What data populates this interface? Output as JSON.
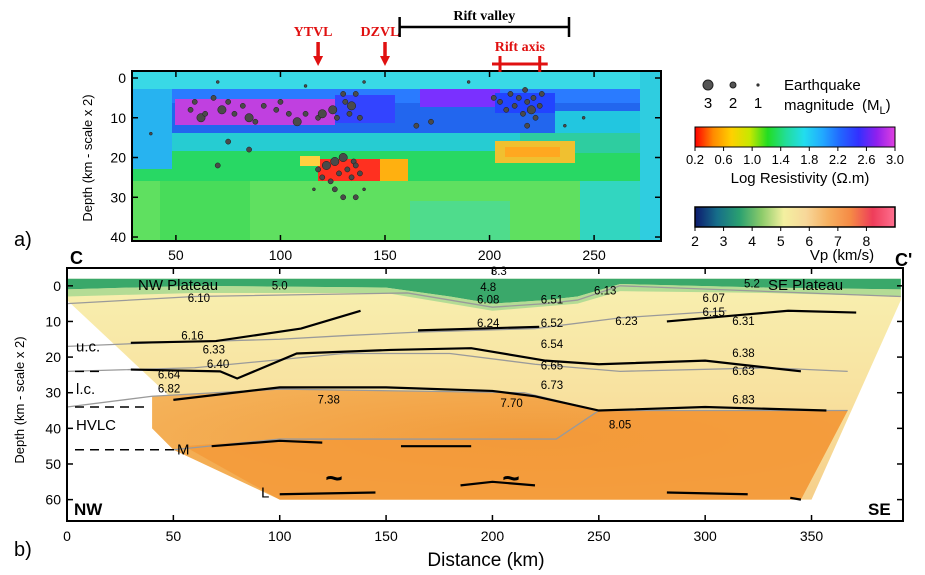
{
  "colors": {
    "red_marker": "#e01010",
    "black": "#000000",
    "grey_line": "#9a9a9a"
  },
  "panel_a": {
    "panel_label": "a)",
    "ylabel": "Depth (km - scale x 2)",
    "y_ticks": [
      "0",
      "10",
      "20",
      "30",
      "40"
    ],
    "x_ticks": [
      "50",
      "100",
      "150",
      "200",
      "250"
    ],
    "ylim": [
      0,
      41
    ],
    "xlim": [
      29,
      282
    ],
    "markers": [
      {
        "label": "YTVL",
        "x": 118
      },
      {
        "label": "DZVL",
        "x": 150
      }
    ],
    "rift_valley": {
      "label": "Rift valley",
      "x_start": 157,
      "x_end": 238
    },
    "rift_axis": {
      "label": "Rift axis",
      "x_start": 205,
      "x_end": 224
    },
    "legend": {
      "title_line1": "Earthquake",
      "title_line2": "magnitude",
      "unit": "(ML)",
      "unit_main": "(M",
      "unit_sub": "L",
      "unit_close": ")",
      "mags": [
        "3",
        "2",
        "1"
      ]
    },
    "colorbar": {
      "ticks": [
        "0.2",
        "0.6",
        "1.0",
        "1.4",
        "1.8",
        "2.2",
        "2.6",
        "3.0"
      ],
      "label": "Log Resistivity (Ω.m)",
      "colors": [
        "#ff0000",
        "#ff8a00",
        "#ffd000",
        "#c8e800",
        "#22dd22",
        "#22dd99",
        "#22ddee",
        "#22aaff",
        "#2266ff",
        "#3330ff",
        "#9020ee",
        "#e040e0"
      ]
    },
    "earthquakes": [
      [
        38,
        14,
        1
      ],
      [
        57,
        8,
        2
      ],
      [
        59,
        6,
        2
      ],
      [
        62,
        10,
        3
      ],
      [
        64,
        9,
        2
      ],
      [
        68,
        5,
        2
      ],
      [
        72,
        8,
        3
      ],
      [
        75,
        6,
        2
      ],
      [
        78,
        9,
        2
      ],
      [
        82,
        7,
        2
      ],
      [
        85,
        10,
        3
      ],
      [
        88,
        11,
        2
      ],
      [
        92,
        7,
        2
      ],
      [
        98,
        8,
        2
      ],
      [
        100,
        6,
        2
      ],
      [
        104,
        9,
        2
      ],
      [
        108,
        11,
        3
      ],
      [
        112,
        9,
        2
      ],
      [
        118,
        10,
        2
      ],
      [
        120,
        9,
        3
      ],
      [
        125,
        8,
        3
      ],
      [
        127,
        10,
        2
      ],
      [
        130,
        4,
        2
      ],
      [
        131,
        6,
        2
      ],
      [
        133,
        9,
        2
      ],
      [
        134,
        7,
        3
      ],
      [
        136,
        4,
        2
      ],
      [
        138,
        10,
        2
      ],
      [
        165,
        12,
        2
      ],
      [
        172,
        11,
        2
      ],
      [
        190,
        1,
        1
      ],
      [
        75,
        16,
        2
      ],
      [
        85,
        18,
        2
      ],
      [
        70,
        22,
        2
      ],
      [
        118,
        23,
        2
      ],
      [
        120,
        25,
        2
      ],
      [
        122,
        22,
        3
      ],
      [
        124,
        26,
        2
      ],
      [
        126,
        21,
        3
      ],
      [
        128,
        24,
        2
      ],
      [
        130,
        20,
        3
      ],
      [
        132,
        23,
        2
      ],
      [
        134,
        25,
        2
      ],
      [
        135,
        21,
        2
      ],
      [
        136,
        22,
        2
      ],
      [
        138,
        24,
        2
      ],
      [
        126,
        28,
        2
      ],
      [
        130,
        30,
        2
      ],
      [
        116,
        28,
        1
      ],
      [
        136,
        30,
        2
      ],
      [
        140,
        28,
        1
      ],
      [
        202,
        5,
        2
      ],
      [
        205,
        6,
        2
      ],
      [
        208,
        8,
        2
      ],
      [
        210,
        4,
        2
      ],
      [
        212,
        7,
        2
      ],
      [
        214,
        5,
        2
      ],
      [
        216,
        9,
        2
      ],
      [
        217,
        3,
        2
      ],
      [
        218,
        6,
        2
      ],
      [
        220,
        8,
        3
      ],
      [
        221,
        5,
        2
      ],
      [
        222,
        10,
        2
      ],
      [
        224,
        7,
        2
      ],
      [
        225,
        4,
        2
      ],
      [
        218,
        12,
        2
      ],
      [
        236,
        12,
        1
      ],
      [
        70,
        1,
        1
      ],
      [
        112,
        2,
        1
      ],
      [
        140,
        1,
        1
      ],
      [
        245,
        10,
        1
      ]
    ]
  },
  "panel_b": {
    "panel_label": "b)",
    "left_end": "C",
    "right_end": "C'",
    "ylabel": "Depth (km - scale x 2)",
    "xlabel": "Distance (km)",
    "x_ticks": [
      "0",
      "50",
      "100",
      "150",
      "200",
      "250",
      "300",
      "350"
    ],
    "y_ticks": [
      "0",
      "10",
      "20",
      "30",
      "40",
      "50",
      "60"
    ],
    "xlim": [
      0,
      393
    ],
    "ylim": [
      -5,
      66
    ],
    "nw_plateau": "NW Plateau",
    "se_plateau": "SE Plateau",
    "nw": "NW",
    "se": "SE",
    "left_labels": [
      {
        "text": "u.c.",
        "depth": 17
      },
      {
        "text": "l.c.",
        "depth": 29
      },
      {
        "text": "HVLC",
        "depth": 39
      },
      {
        "text": "M",
        "depth": 46
      },
      {
        "text": "L",
        "depth": 58
      }
    ],
    "tilde": "~",
    "velocity_labels": [
      {
        "x": 100,
        "depth": 1,
        "text": "5.0"
      },
      {
        "x": 203,
        "depth": -3,
        "text": "3.3"
      },
      {
        "x": 198,
        "depth": 1.5,
        "text": "4.8"
      },
      {
        "x": 253,
        "depth": 2.5,
        "text": "6.13"
      },
      {
        "x": 322,
        "depth": 0.5,
        "text": "5.2"
      },
      {
        "x": 62,
        "depth": 4.5,
        "text": "6.10"
      },
      {
        "x": 198,
        "depth": 5,
        "text": "6.08"
      },
      {
        "x": 228,
        "depth": 5,
        "text": "6.51"
      },
      {
        "x": 304,
        "depth": 4.5,
        "text": "6.07"
      },
      {
        "x": 304,
        "depth": 8.5,
        "text": "6.15"
      },
      {
        "x": 198,
        "depth": 11.5,
        "text": "6.24"
      },
      {
        "x": 228,
        "depth": 11.5,
        "text": "6.52"
      },
      {
        "x": 263,
        "depth": 11,
        "text": "6.23"
      },
      {
        "x": 318,
        "depth": 11,
        "text": "6.31"
      },
      {
        "x": 59,
        "depth": 15,
        "text": "6.16"
      },
      {
        "x": 69,
        "depth": 19,
        "text": "6.33"
      },
      {
        "x": 228,
        "depth": 17.5,
        "text": "6.54"
      },
      {
        "x": 318,
        "depth": 20,
        "text": "6.38"
      },
      {
        "x": 71,
        "depth": 23,
        "text": "6.40"
      },
      {
        "x": 48,
        "depth": 26,
        "text": "6.64"
      },
      {
        "x": 228,
        "depth": 23.5,
        "text": "6.65"
      },
      {
        "x": 318,
        "depth": 25,
        "text": "6.63"
      },
      {
        "x": 48,
        "depth": 30,
        "text": "6.82"
      },
      {
        "x": 228,
        "depth": 29,
        "text": "6.73"
      },
      {
        "x": 123,
        "depth": 33,
        "text": "7.38"
      },
      {
        "x": 209,
        "depth": 34,
        "text": "7.70"
      },
      {
        "x": 318,
        "depth": 33,
        "text": "6.83"
      },
      {
        "x": 260,
        "depth": 40,
        "text": "8.05"
      }
    ],
    "colorbar": {
      "ticks": [
        "2",
        "3",
        "4",
        "5",
        "6",
        "7",
        "8"
      ],
      "label": "Vp (km/s)",
      "vmin": 2,
      "vmax": 9,
      "colors": [
        "#0d1a6e",
        "#166e8a",
        "#2aa070",
        "#8ccb6a",
        "#f4f0a0",
        "#f7d79a",
        "#f6b060",
        "#f58a45",
        "#ee3d5a",
        "#ff7090"
      ]
    }
  }
}
